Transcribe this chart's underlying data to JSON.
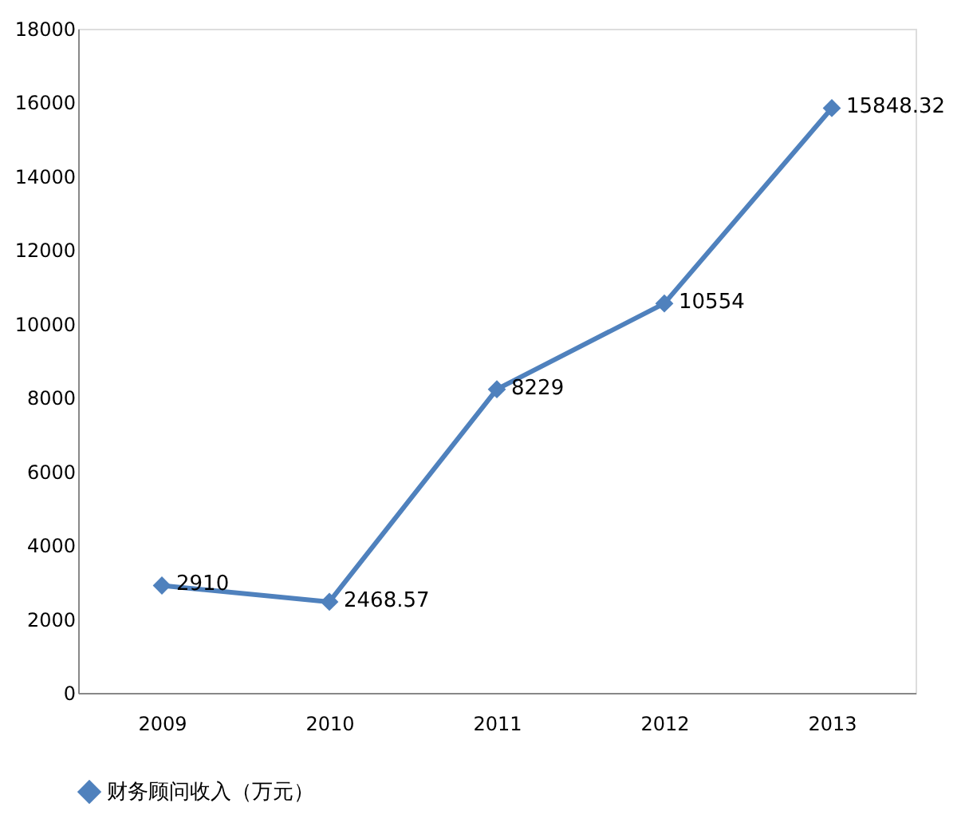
{
  "chart_data": {
    "type": "line",
    "categories": [
      "2009",
      "2010",
      "2011",
      "2012",
      "2013"
    ],
    "series": [
      {
        "name": "财务顾问收入（万元）",
        "color": "#4f81bd",
        "values": [
          2910,
          2468.57,
          8229,
          10554,
          15848.32
        ]
      }
    ],
    "ylim": [
      0,
      18000
    ],
    "yticks": [
      0,
      2000,
      4000,
      6000,
      8000,
      10000,
      12000,
      14000,
      16000,
      18000
    ],
    "grid": false,
    "legend": "bottom",
    "marker": "diamond",
    "line_style": "solid",
    "data_labels": true
  }
}
